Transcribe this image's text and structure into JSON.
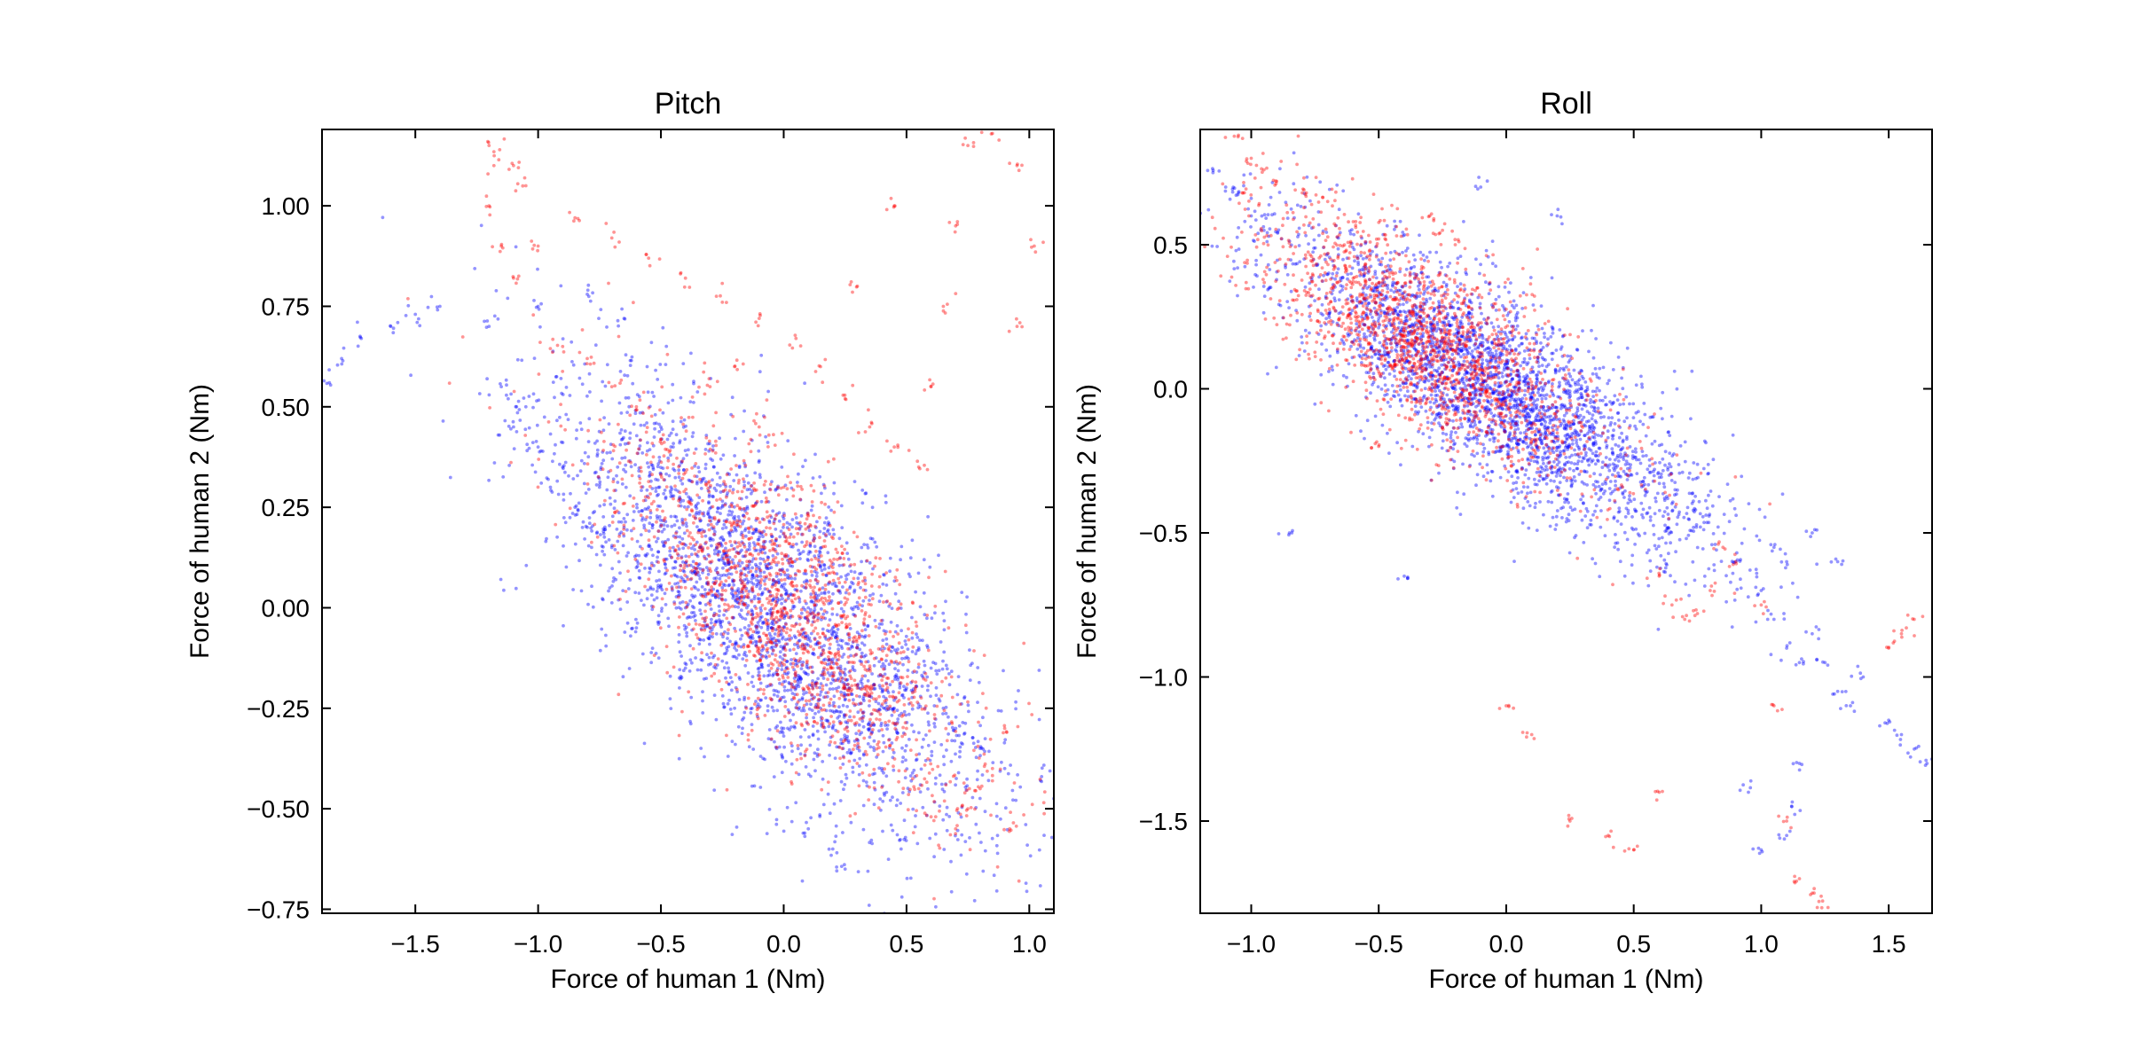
{
  "chart_data": [
    {
      "type": "scatter",
      "title": "Pitch",
      "xlabel": "Force of human 1 (Nm)",
      "ylabel": "Force of human 2 (Nm)",
      "xlim": [
        -1.88,
        1.1
      ],
      "ylim": [
        -0.76,
        1.19
      ],
      "xticks": [
        -1.5,
        -1.0,
        -0.5,
        0.0,
        0.5,
        1.0
      ],
      "xtick_labels": [
        "−1.5",
        "−1.0",
        "−0.5",
        "0.0",
        "0.5",
        "1.0"
      ],
      "yticks": [
        -0.75,
        -0.5,
        -0.25,
        0.0,
        0.25,
        0.5,
        0.75,
        1.0
      ],
      "ytick_labels": [
        "−0.75",
        "−0.50",
        "−0.25",
        "0.00",
        "0.25",
        "0.50",
        "0.75",
        "1.00"
      ],
      "grid": false,
      "series": [
        {
          "color": "#0000ff",
          "points": [
            [
              -1.85,
              0.56
            ],
            [
              -1.8,
              0.62
            ],
            [
              -1.72,
              0.67
            ],
            [
              -1.6,
              0.7
            ],
            [
              -1.5,
              0.73
            ],
            [
              -1.4,
              0.75
            ],
            [
              -1.2,
              0.7
            ],
            [
              -1.15,
              0.55
            ],
            [
              -1.1,
              0.45
            ],
            [
              -1.05,
              0.5
            ],
            [
              -1.0,
              0.4
            ],
            [
              -0.95,
              0.3
            ],
            [
              -0.9,
              0.35
            ],
            [
              -0.85,
              0.25
            ],
            [
              -0.8,
              0.2
            ],
            [
              -0.75,
              0.3
            ],
            [
              -0.7,
              0.15
            ],
            [
              -0.65,
              0.2
            ],
            [
              -0.6,
              0.1
            ],
            [
              -0.55,
              0.25
            ],
            [
              -0.5,
              0.05
            ],
            [
              -0.45,
              0.15
            ],
            [
              -0.4,
              0.0
            ],
            [
              -0.35,
              0.1
            ],
            [
              -0.3,
              -0.05
            ],
            [
              -0.25,
              0.05
            ],
            [
              -0.2,
              -0.1
            ],
            [
              -0.15,
              0.0
            ],
            [
              -0.1,
              -0.15
            ],
            [
              -0.05,
              -0.05
            ],
            [
              0.0,
              -0.1
            ],
            [
              0.05,
              -0.2
            ],
            [
              0.1,
              -0.15
            ],
            [
              0.15,
              -0.25
            ],
            [
              0.2,
              -0.3
            ],
            [
              0.25,
              -0.2
            ],
            [
              0.3,
              -0.35
            ],
            [
              0.35,
              -0.3
            ],
            [
              0.4,
              -0.4
            ],
            [
              0.45,
              -0.25
            ],
            [
              0.5,
              -0.2
            ],
            [
              0.55,
              -0.1
            ],
            [
              0.6,
              -0.15
            ],
            [
              0.65,
              -0.25
            ],
            [
              0.7,
              -0.3
            ],
            [
              0.8,
              -0.35
            ],
            [
              0.9,
              -0.4
            ],
            [
              1.05,
              -0.42
            ],
            [
              0.2,
              -0.6
            ],
            [
              0.25,
              -0.65
            ],
            [
              0.1,
              -0.55
            ],
            [
              -1.0,
              0.75
            ],
            [
              -0.8,
              0.78
            ],
            [
              -0.65,
              0.72
            ],
            [
              -0.5,
              0.45
            ],
            [
              -0.3,
              0.3
            ],
            [
              -0.2,
              0.2
            ],
            [
              -0.1,
              0.1
            ],
            [
              0.0,
              0.05
            ],
            [
              0.1,
              0.0
            ],
            [
              0.2,
              -0.05
            ],
            [
              0.3,
              -0.1
            ],
            [
              -0.6,
              -0.05
            ],
            [
              -0.4,
              -0.15
            ],
            [
              -0.2,
              -0.25
            ],
            [
              0.0,
              -0.3
            ],
            [
              -0.55,
              0.35
            ],
            [
              -0.45,
              0.4
            ]
          ],
          "scatter_cloud": {
            "center": [
              -0.05,
              0.0
            ],
            "direction": [
              1.0,
              -0.55
            ],
            "spread_major": 0.5,
            "spread_minor": 0.17,
            "count": 2600
          }
        },
        {
          "color": "#ff0000",
          "points": [
            [
              -1.2,
              1.15
            ],
            [
              -1.18,
              1.1
            ],
            [
              -1.1,
              1.1
            ],
            [
              -1.05,
              1.05
            ],
            [
              -1.2,
              1.0
            ],
            [
              -1.15,
              0.9
            ],
            [
              -1.1,
              0.82
            ],
            [
              -1.0,
              0.9
            ],
            [
              -0.85,
              0.97
            ],
            [
              -0.7,
              0.92
            ],
            [
              -0.55,
              0.87
            ],
            [
              -0.4,
              0.82
            ],
            [
              -0.25,
              0.76
            ],
            [
              -0.1,
              0.72
            ],
            [
              0.05,
              0.67
            ],
            [
              0.15,
              0.6
            ],
            [
              0.25,
              0.52
            ],
            [
              0.35,
              0.45
            ],
            [
              0.45,
              0.4
            ],
            [
              0.55,
              0.35
            ],
            [
              0.6,
              0.55
            ],
            [
              0.65,
              0.75
            ],
            [
              0.7,
              0.95
            ],
            [
              0.75,
              1.15
            ],
            [
              0.85,
              1.18
            ],
            [
              0.95,
              1.1
            ],
            [
              1.02,
              0.9
            ],
            [
              0.95,
              0.7
            ],
            [
              0.3,
              0.8
            ],
            [
              0.45,
              1.0
            ],
            [
              -0.9,
              0.65
            ],
            [
              -0.8,
              0.62
            ],
            [
              -0.7,
              0.55
            ],
            [
              -0.6,
              0.5
            ],
            [
              -0.5,
              0.42
            ],
            [
              -0.3,
              0.55
            ],
            [
              -0.2,
              0.6
            ],
            [
              -0.1,
              0.45
            ],
            [
              0.0,
              0.3
            ],
            [
              0.1,
              0.2
            ],
            [
              0.2,
              0.1
            ],
            [
              0.3,
              -0.2
            ],
            [
              0.35,
              -0.2
            ],
            [
              0.4,
              -0.18
            ],
            [
              0.5,
              -0.3
            ],
            [
              0.55,
              -0.45
            ],
            [
              0.6,
              -0.52
            ],
            [
              0.7,
              -0.55
            ],
            [
              0.75,
              -0.5
            ],
            [
              0.8,
              -0.45
            ],
            [
              0.85,
              -0.4
            ],
            [
              0.9,
              -0.3
            ],
            [
              0.92,
              -0.55
            ],
            [
              -0.4,
              0.05
            ],
            [
              -0.3,
              -0.05
            ],
            [
              -0.2,
              0.1
            ],
            [
              -0.1,
              -0.1
            ],
            [
              0.0,
              0.0
            ],
            [
              0.1,
              -0.2
            ],
            [
              0.2,
              -0.15
            ]
          ],
          "scatter_cloud": {
            "center": [
              0.0,
              0.0
            ],
            "direction": [
              1.0,
              -0.55
            ],
            "spread_major": 0.42,
            "spread_minor": 0.15,
            "count": 1500
          }
        }
      ]
    },
    {
      "type": "scatter",
      "title": "Roll",
      "xlabel": "Force of human 1 (Nm)",
      "ylabel": "Force of human 2 (Nm)",
      "xlim": [
        -1.2,
        1.67
      ],
      "ylim": [
        -1.82,
        0.9
      ],
      "xticks": [
        -1.0,
        -0.5,
        0.0,
        0.5,
        1.0,
        1.5
      ],
      "xtick_labels": [
        "−1.0",
        "−0.5",
        "0.0",
        "0.5",
        "1.0",
        "1.5"
      ],
      "yticks": [
        -1.5,
        -1.0,
        -0.5,
        0.0,
        0.5
      ],
      "ytick_labels": [
        "−1.5",
        "−1.0",
        "−0.5",
        "0.0",
        "0.5"
      ],
      "grid": false,
      "series": [
        {
          "color": "#0000ff",
          "points": [
            [
              -1.15,
              0.75
            ],
            [
              -1.1,
              0.7
            ],
            [
              -1.05,
              0.68
            ],
            [
              -1.0,
              0.6
            ],
            [
              -0.95,
              0.55
            ],
            [
              0.9,
              -0.6
            ],
            [
              1.0,
              -0.7
            ],
            [
              1.05,
              -0.8
            ],
            [
              1.1,
              -0.9
            ],
            [
              1.15,
              -0.95
            ],
            [
              1.2,
              -0.85
            ],
            [
              1.25,
              -0.95
            ],
            [
              1.3,
              -1.05
            ],
            [
              1.35,
              -1.1
            ],
            [
              1.4,
              -1.0
            ],
            [
              1.5,
              -1.15
            ],
            [
              1.55,
              -1.2
            ],
            [
              1.6,
              -1.25
            ],
            [
              1.65,
              -1.3
            ],
            [
              1.05,
              -0.55
            ],
            [
              1.1,
              -0.6
            ],
            [
              1.2,
              -0.5
            ],
            [
              1.3,
              -0.6
            ],
            [
              1.15,
              -1.3
            ],
            [
              1.12,
              -1.45
            ],
            [
              1.1,
              -1.55
            ],
            [
              1.0,
              -1.6
            ],
            [
              0.95,
              -1.4
            ],
            [
              -0.85,
              -0.5
            ],
            [
              -0.4,
              -0.65
            ],
            [
              0.2,
              0.6
            ],
            [
              -0.1,
              0.7
            ]
          ],
          "scatter_cloud": {
            "center": [
              -0.05,
              0.0
            ],
            "direction": [
              1.0,
              -0.6
            ],
            "spread_major": 0.48,
            "spread_minor": 0.14,
            "count": 3000
          }
        },
        {
          "color": "#ff0000",
          "points": [
            [
              -1.05,
              0.88
            ],
            [
              -1.0,
              0.8
            ],
            [
              -0.95,
              0.76
            ],
            [
              -0.9,
              0.72
            ],
            [
              -0.8,
              0.68
            ],
            [
              -0.7,
              0.65
            ],
            [
              -0.6,
              0.58
            ],
            [
              -0.5,
              0.52
            ],
            [
              -0.3,
              0.6
            ],
            [
              -0.25,
              0.55
            ],
            [
              -0.2,
              0.5
            ],
            [
              0.6,
              -0.65
            ],
            [
              0.65,
              -0.75
            ],
            [
              0.7,
              -0.8
            ],
            [
              0.75,
              -0.78
            ],
            [
              0.8,
              -0.7
            ],
            [
              0.85,
              -0.55
            ],
            [
              0.9,
              -0.6
            ],
            [
              1.0,
              -0.75
            ],
            [
              1.05,
              -1.1
            ],
            [
              1.1,
              -1.5
            ],
            [
              1.15,
              -1.7
            ],
            [
              1.2,
              -1.75
            ],
            [
              1.22,
              -1.8
            ],
            [
              0.0,
              -1.1
            ],
            [
              0.1,
              -1.2
            ],
            [
              0.25,
              -1.5
            ],
            [
              0.4,
              -1.55
            ],
            [
              0.5,
              -1.6
            ],
            [
              0.6,
              -1.4
            ],
            [
              1.6,
              -0.8
            ],
            [
              1.55,
              -0.85
            ],
            [
              1.5,
              -0.9
            ],
            [
              -0.5,
              -0.2
            ]
          ],
          "scatter_cloud": {
            "center": [
              -0.3,
              0.15
            ],
            "direction": [
              1.0,
              -0.6
            ],
            "spread_major": 0.38,
            "spread_minor": 0.13,
            "count": 1700
          }
        }
      ]
    }
  ]
}
